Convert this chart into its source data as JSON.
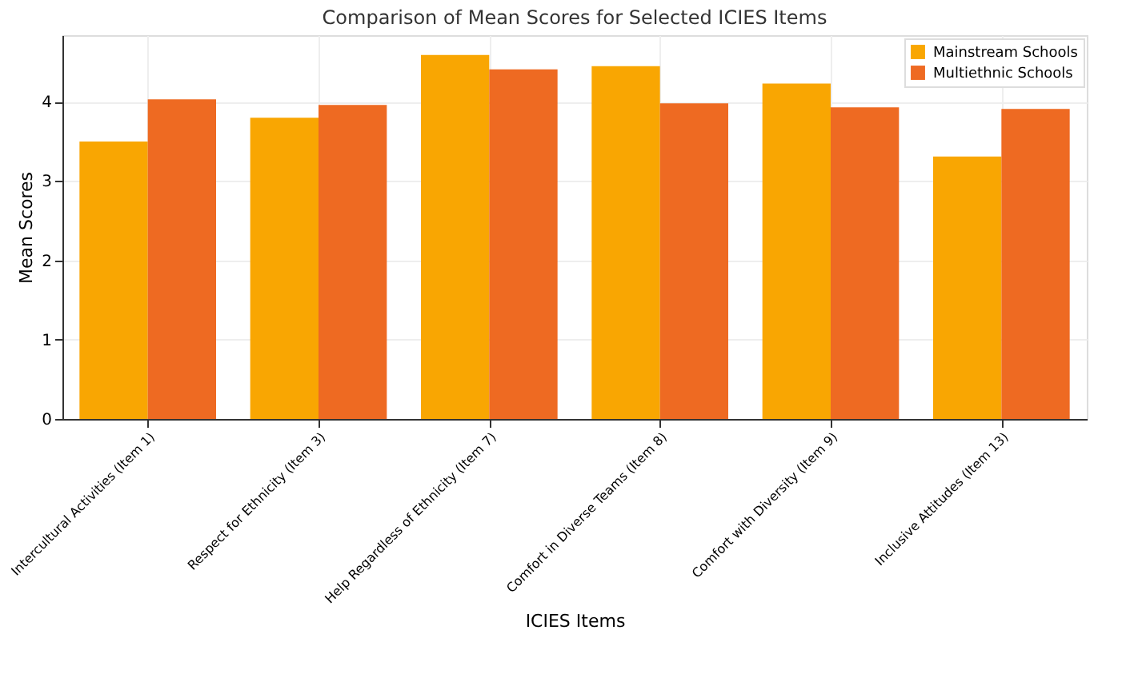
{
  "chart_data": {
    "type": "bar",
    "title": "Comparison of Mean Scores for Selected ICIES Items",
    "xlabel": "ICIES Items",
    "ylabel": "Mean Scores",
    "categories": [
      "Intercultural Activities (Item 1)",
      "Respect for Ethnicity (Item 3)",
      "Help Regardless of Ethnicity (Item 7)",
      "Comfort in Diverse Teams (Item 8)",
      "Comfort with Diversity (Item 9)",
      "Inclusive Attitudes (Item 13)"
    ],
    "series": [
      {
        "name": "Mainstream Schools",
        "color": "#f9a602",
        "values": [
          3.5,
          3.8,
          4.59,
          4.45,
          4.23,
          3.31
        ]
      },
      {
        "name": "Multiethnic Schools",
        "color": "#ee6a22",
        "values": [
          4.03,
          3.96,
          4.41,
          3.98,
          3.93,
          3.91
        ]
      }
    ],
    "ylim": [
      0,
      4.84
    ],
    "yticks": [
      0,
      1,
      2,
      3,
      4
    ],
    "grid": true,
    "legend": "top right"
  }
}
